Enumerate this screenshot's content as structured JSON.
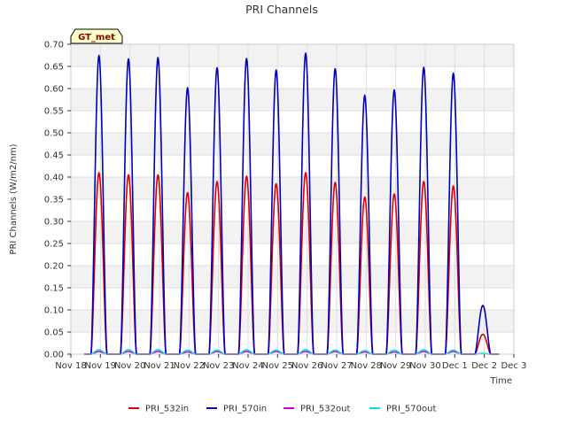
{
  "chart_data": {
    "type": "line",
    "title": "PRI Channels",
    "xlabel": "Time",
    "ylabel": "PRI Channels (W/m2/nm)",
    "ylim": [
      0,
      0.7
    ],
    "yticks": [
      0.0,
      0.05,
      0.1,
      0.15,
      0.2,
      0.25,
      0.3,
      0.35,
      0.4,
      0.45,
      0.5,
      0.55,
      0.6,
      0.65,
      0.7
    ],
    "ytick_labels": [
      "0.00",
      "0.05",
      "0.10",
      "0.15",
      "0.20",
      "0.25",
      "0.30",
      "0.35",
      "0.40",
      "0.45",
      "0.50",
      "0.55",
      "0.60",
      "0.65",
      "0.70"
    ],
    "xlim": [
      18,
      33
    ],
    "xticks": [
      18,
      19,
      20,
      21,
      22,
      23,
      24,
      25,
      26,
      27,
      28,
      29,
      30,
      31,
      32,
      33
    ],
    "xtick_labels": [
      "Nov 18",
      "Nov 19",
      "Nov 20",
      "Nov 21",
      "Nov 22",
      "Nov 23",
      "Nov 24",
      "Nov 25",
      "Nov 26",
      "Nov 27",
      "Nov 28",
      "Nov 29",
      "Nov 30",
      "Dec 1",
      "Dec 2",
      "Dec 3"
    ],
    "grid": true,
    "legend_position": "bottom",
    "badge": "GT_met",
    "day_peaks": {
      "days": [
        19,
        20,
        21,
        22,
        23,
        24,
        25,
        26,
        27,
        28,
        29,
        30,
        31,
        32
      ],
      "PRI_532in": [
        0.41,
        0.405,
        0.405,
        0.365,
        0.39,
        0.402,
        0.385,
        0.41,
        0.388,
        0.355,
        0.362,
        0.39,
        0.38,
        0.045
      ],
      "PRI_570in": [
        0.675,
        0.667,
        0.67,
        0.602,
        0.647,
        0.668,
        0.642,
        0.68,
        0.645,
        0.585,
        0.597,
        0.648,
        0.635,
        0.11
      ],
      "PRI_532out": [
        0.006,
        0.006,
        0.006,
        0.005,
        0.006,
        0.006,
        0.006,
        0.006,
        0.006,
        0.005,
        0.005,
        0.006,
        0.006,
        0.001
      ],
      "PRI_570out": [
        0.01,
        0.01,
        0.01,
        0.009,
        0.009,
        0.01,
        0.009,
        0.01,
        0.009,
        0.008,
        0.009,
        0.01,
        0.009,
        0.002
      ]
    },
    "series": [
      {
        "name": "PRI_532in",
        "color": "#dd0000"
      },
      {
        "name": "PRI_570in",
        "color": "#0000bb"
      },
      {
        "name": "PRI_532out",
        "color": "#cc00cc"
      },
      {
        "name": "PRI_570out",
        "color": "#00ddee"
      }
    ]
  }
}
